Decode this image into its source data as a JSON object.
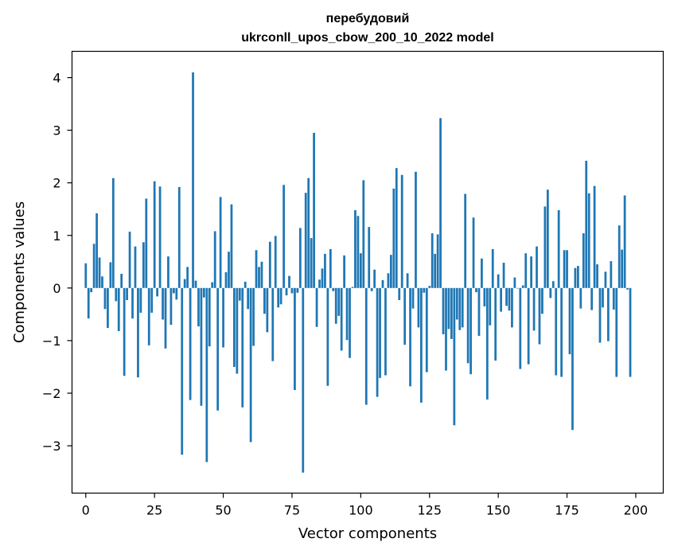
{
  "chart_data": {
    "type": "bar",
    "title": [
      "перебудовий",
      "ukrconll_upos_cbow_200_10_2022 model"
    ],
    "xlabel": "Vector components",
    "ylabel": "Components values",
    "xlim": [
      -5,
      210
    ],
    "ylim": [
      -3.9,
      4.5
    ],
    "xticks": [
      0,
      25,
      50,
      75,
      100,
      125,
      150,
      175,
      200
    ],
    "yticks": [
      -3,
      -2,
      -1,
      0,
      1,
      2,
      3,
      4
    ],
    "bar_color": "#1f77b4",
    "values": [
      0.47,
      -0.58,
      -0.08,
      0.84,
      1.42,
      0.58,
      0.22,
      -0.4,
      -0.76,
      0.49,
      2.09,
      -0.25,
      -0.82,
      0.27,
      -1.67,
      -0.23,
      1.07,
      -0.58,
      0.79,
      -1.7,
      -0.47,
      0.87,
      1.7,
      -1.09,
      -0.47,
      2.03,
      -0.16,
      1.93,
      -0.6,
      -1.15,
      0.6,
      -0.7,
      -0.1,
      -0.22,
      1.92,
      -3.17,
      0.17,
      0.4,
      -2.13,
      4.1,
      0.14,
      -0.73,
      -2.24,
      -0.18,
      -3.31,
      -1.11,
      0.11,
      1.08,
      -2.33,
      1.73,
      -1.13,
      0.3,
      0.69,
      1.59,
      -1.5,
      -1.63,
      -0.24,
      -2.27,
      0.12,
      -0.4,
      -2.93,
      -1.1,
      0.72,
      0.4,
      0.5,
      -0.49,
      -0.84,
      0.88,
      -1.39,
      0.99,
      -0.37,
      -0.31,
      1.96,
      -0.14,
      0.23,
      -0.1,
      -1.94,
      -0.09,
      1.14,
      -3.51,
      1.81,
      2.09,
      0.95,
      2.95,
      -0.74,
      0.16,
      0.37,
      0.65,
      -1.86,
      0.74,
      -0.06,
      -0.68,
      -0.53,
      -1.19,
      0.62,
      -0.99,
      -1.33,
      0.02,
      1.48,
      1.37,
      0.66,
      2.05,
      -2.22,
      1.16,
      -0.06,
      0.35,
      -2.07,
      -1.71,
      0.15,
      -1.66,
      0.28,
      0.63,
      1.89,
      2.28,
      -0.23,
      2.15,
      -1.08,
      0.28,
      -1.87,
      -0.39,
      2.21,
      -0.75,
      -2.18,
      -0.09,
      -1.6,
      0.04,
      1.04,
      0.65,
      1.02,
      3.23,
      -0.88,
      -1.57,
      -0.78,
      -0.97,
      -2.61,
      -0.6,
      -0.8,
      -0.75,
      1.79,
      -1.43,
      -1.64,
      1.34,
      -0.08,
      -0.91,
      0.56,
      -0.35,
      -2.12,
      -0.71,
      0.74,
      -1.38,
      0.26,
      -0.45,
      0.48,
      -0.34,
      -0.43,
      -0.75,
      0.2,
      -0.01,
      -1.54,
      0.05,
      0.66,
      -1.45,
      0.6,
      -0.81,
      0.79,
      -1.07,
      -0.49,
      1.55,
      1.87,
      -0.19,
      0.13,
      -1.66,
      1.48,
      -1.69,
      0.72,
      0.72,
      -1.26,
      -2.7,
      0.38,
      0.42,
      -0.39,
      1.04,
      2.42,
      1.8,
      -0.42,
      1.94,
      0.45,
      -1.04,
      -0.37,
      0.31,
      -1.01,
      0.51,
      -0.41,
      -1.69,
      1.19,
      0.73,
      1.76,
      -0.03,
      -1.69
    ]
  }
}
